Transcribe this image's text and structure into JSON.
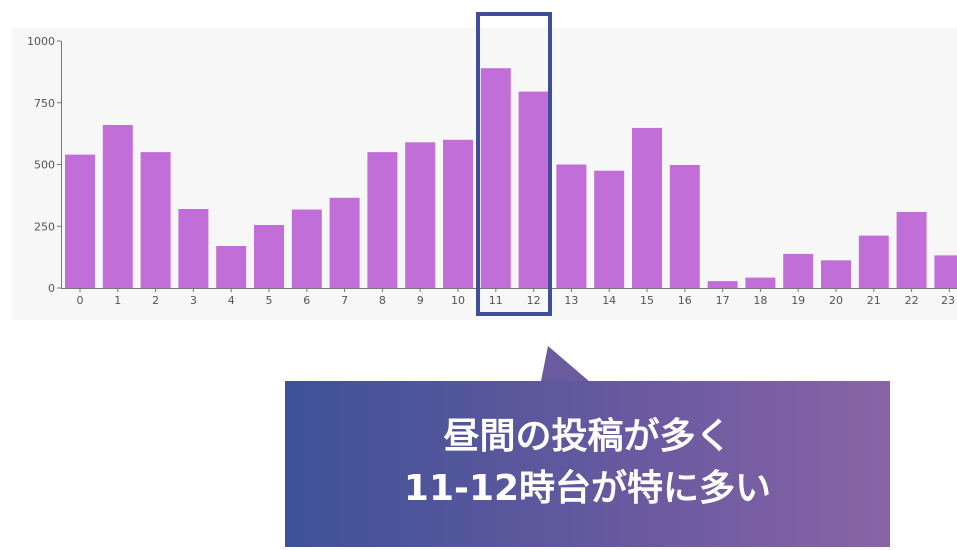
{
  "chart_data": {
    "type": "bar",
    "categories": [
      "0",
      "1",
      "2",
      "3",
      "4",
      "5",
      "6",
      "7",
      "8",
      "9",
      "10",
      "11",
      "12",
      "13",
      "14",
      "15",
      "16",
      "17",
      "18",
      "19",
      "20",
      "21",
      "22",
      "23"
    ],
    "values": [
      540,
      660,
      550,
      320,
      170,
      255,
      318,
      365,
      550,
      590,
      600,
      890,
      795,
      500,
      475,
      648,
      498,
      28,
      42,
      138,
      112,
      212,
      308,
      132
    ],
    "yticks": [
      "0",
      "250",
      "500",
      "750",
      "1000"
    ],
    "ylim": [
      0,
      1000
    ],
    "bar_color": "#c26ed8",
    "grid": false,
    "highlight_categories": [
      "11",
      "12"
    ]
  },
  "callout": {
    "line1": "昼間の投稿が多く",
    "line2": "11-12時台が特に多い",
    "gradient_start": "#3e5297",
    "gradient_end": "#8a63a6"
  }
}
